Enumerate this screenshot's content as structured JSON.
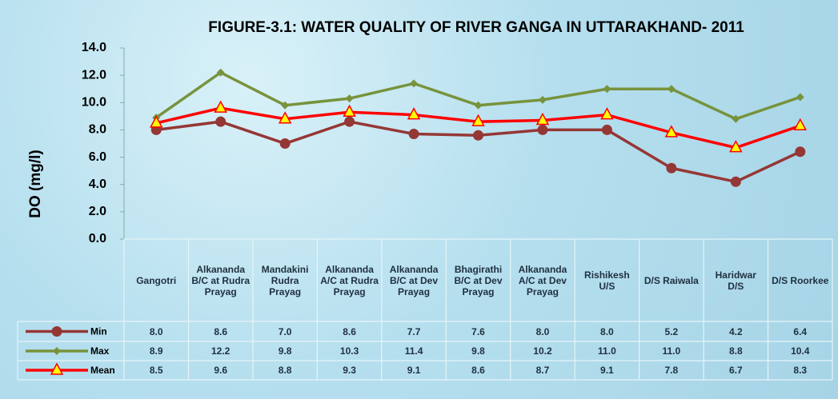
{
  "chart_data": {
    "type": "line",
    "title": "FIGURE-3.1: WATER QUALITY OF RIVER GANGA IN UTTARAKHAND- 2011",
    "y_label": "DO  (mg/l)",
    "categories": [
      "Gangotri",
      "Alkananda B/C at Rudra Prayag",
      "Mandakini Rudra Prayag",
      "Alkananda A/C at Rudra Prayag",
      "Alkananda B/C at Dev Prayag",
      "Bhagirathi B/C at Dev Prayag",
      "Alkananda A/C at Dev Prayag",
      "Rishikesh U/S",
      "D/S Raiwala",
      "Haridwar D/S",
      "D/S Roorkee"
    ],
    "series": [
      {
        "name": "Min",
        "color": "#953735",
        "marker": "circle",
        "values": [
          8.0,
          8.6,
          7.0,
          8.6,
          7.7,
          7.6,
          8.0,
          8.0,
          5.2,
          4.2,
          6.4
        ],
        "value_labels": [
          "8.0",
          "8.6",
          "7.0",
          "8.6",
          "7.7",
          "7.6",
          "8.0",
          "8.0",
          "5.2",
          "4.2",
          "6.4"
        ]
      },
      {
        "name": "Max",
        "color": "#77933c",
        "marker": "diamond",
        "values": [
          8.9,
          12.2,
          9.8,
          10.3,
          11.4,
          9.8,
          10.2,
          11.0,
          11.0,
          8.8,
          10.4
        ],
        "value_labels": [
          "8.9",
          "12.2",
          "9.8",
          "10.3",
          "11.4",
          "9.8",
          "10.2",
          "11.0",
          "11.0",
          "8.8",
          "10.4"
        ]
      },
      {
        "name": "Mean",
        "color": "#ff0000",
        "marker": "triangle",
        "values": [
          8.5,
          9.6,
          8.8,
          9.3,
          9.1,
          8.6,
          8.7,
          9.1,
          7.8,
          6.7,
          8.3
        ],
        "value_labels": [
          "8.5",
          "9.6",
          "8.8",
          "9.3",
          "9.1",
          "8.6",
          "8.7",
          "9.1",
          "7.8",
          "6.7",
          "8.3"
        ]
      }
    ],
    "ylim": [
      0,
      14
    ],
    "yticks": [
      {
        "value": 0,
        "label": "0.0"
      },
      {
        "value": 2,
        "label": "2.0"
      },
      {
        "value": 4,
        "label": "4.0"
      },
      {
        "value": 6,
        "label": "6.0"
      },
      {
        "value": 8,
        "label": "8.0"
      },
      {
        "value": 10,
        "label": "10.0"
      },
      {
        "value": 12,
        "label": "12.0"
      },
      {
        "value": 14,
        "label": "14.0"
      }
    ],
    "grid": false
  }
}
